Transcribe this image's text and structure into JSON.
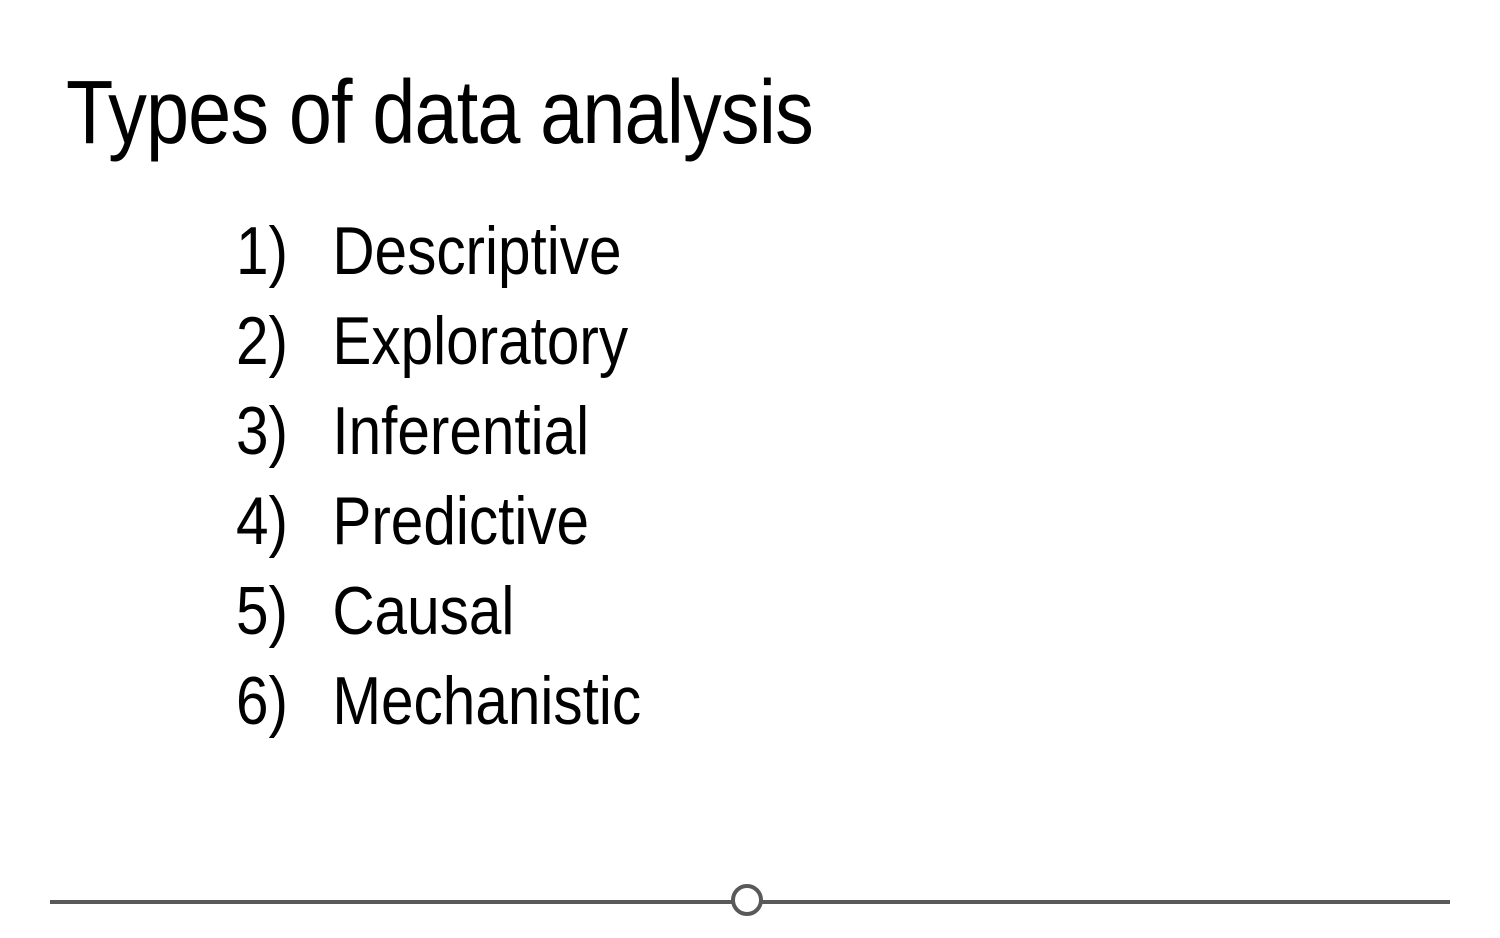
{
  "slide": {
    "title": "Types of data analysis",
    "items": [
      {
        "number": "1)",
        "label": "Descriptive"
      },
      {
        "number": "2)",
        "label": "Exploratory"
      },
      {
        "number": "3)",
        "label": "Inferential"
      },
      {
        "number": "4)",
        "label": "Predictive"
      },
      {
        "number": "5)",
        "label": "Causal"
      },
      {
        "number": "6)",
        "label": "Mechanistic"
      }
    ]
  },
  "colors": {
    "text": "#000000",
    "rule": "#595959",
    "background": "#ffffff"
  }
}
